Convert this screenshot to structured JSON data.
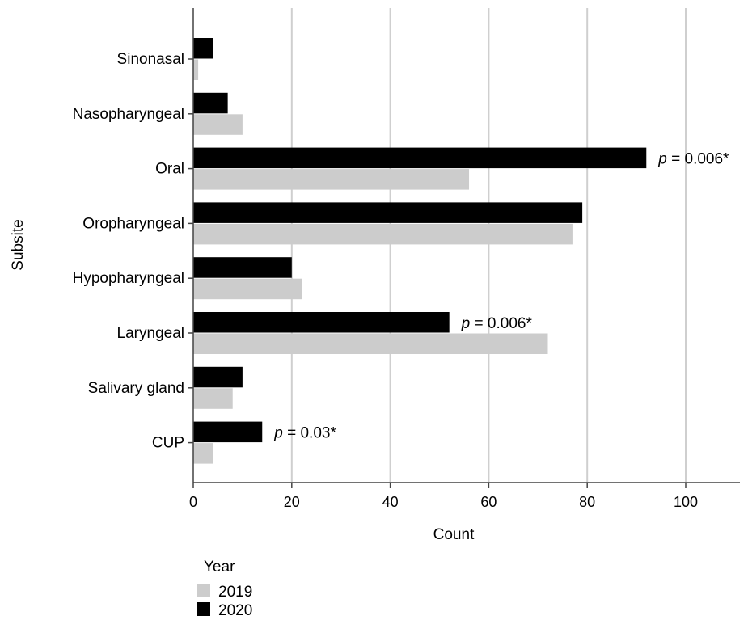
{
  "chart_data": {
    "type": "bar",
    "orientation": "horizontal",
    "categories": [
      "Sinonasal",
      "Nasopharyngeal",
      "Oral",
      "Oropharyngeal",
      "Hypopharyngeal",
      "Laryngeal",
      "Salivary gland",
      "CUP"
    ],
    "series": [
      {
        "name": "2020",
        "color": "#000000",
        "values": [
          4,
          7,
          92,
          79,
          20,
          52,
          10,
          14
        ]
      },
      {
        "name": "2019",
        "color": "#cccccc",
        "values": [
          1,
          10,
          56,
          77,
          22,
          72,
          8,
          4
        ]
      }
    ],
    "xlabel": "Count",
    "ylabel": "Subsite",
    "xlim": [
      0,
      110
    ],
    "xticks": [
      0,
      20,
      40,
      60,
      80,
      100
    ],
    "grid": "vertical",
    "annotations": [
      {
        "category": "Oral",
        "text": "= 0.006*"
      },
      {
        "category": "Laryngeal",
        "text": "= 0.006*"
      },
      {
        "category": "CUP",
        "text": "= 0.03*"
      }
    ],
    "annotation_prefix": "p",
    "legend": {
      "title": "Year",
      "placement": "bottom-left",
      "entries": [
        {
          "label": "2019",
          "color": "#cccccc"
        },
        {
          "label": "2020",
          "color": "#000000"
        }
      ]
    }
  }
}
